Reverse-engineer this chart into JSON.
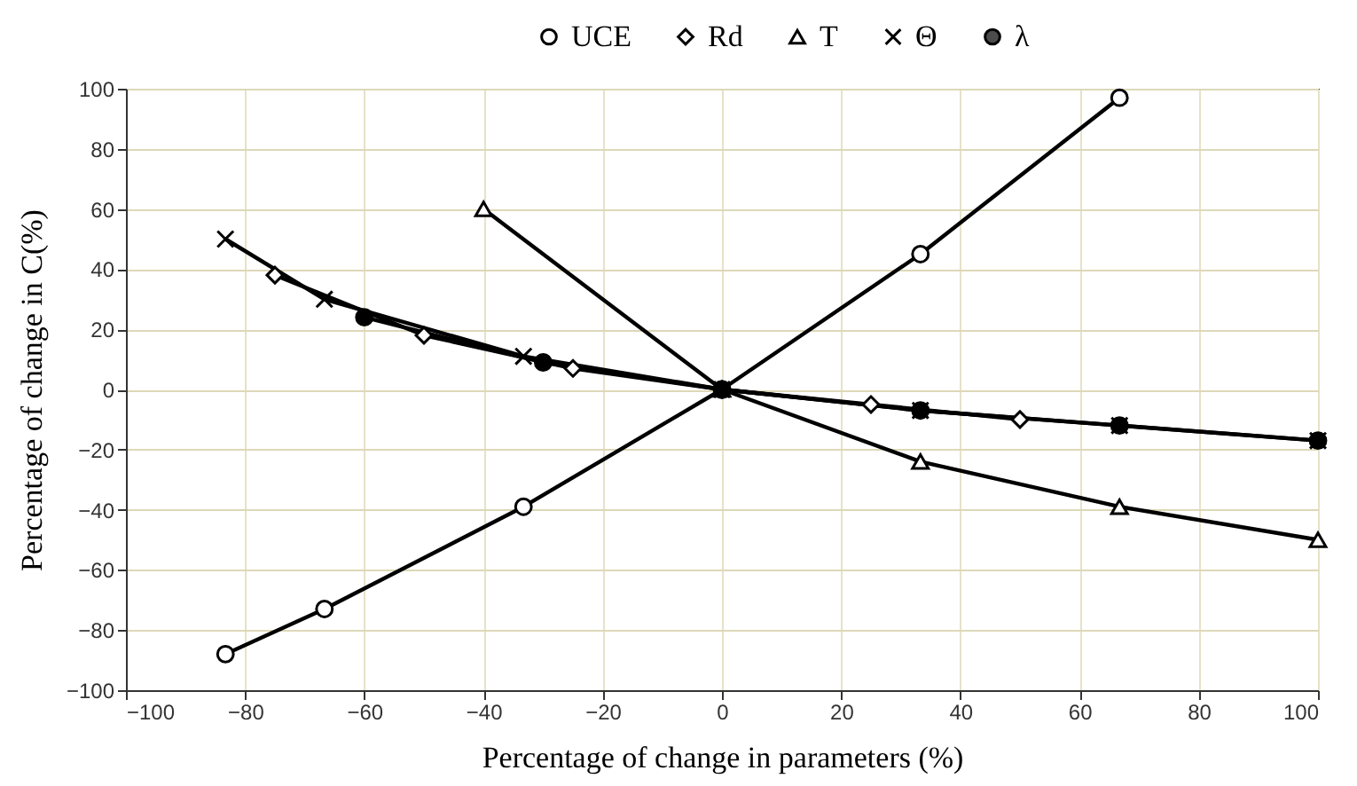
{
  "chart_data": {
    "type": "line",
    "xlabel": "Percentage of change in parameters (%)",
    "ylabel": "Percentage of change  in C(%)",
    "xlim": [
      -100,
      100
    ],
    "xticks": [
      -100,
      -80,
      -60,
      -40,
      -20,
      0,
      20,
      40,
      60,
      80,
      100
    ],
    "ylim": [
      -100,
      100
    ],
    "yticks": [
      -100,
      -80,
      -60,
      -40,
      -20,
      0,
      20,
      40,
      60,
      80,
      100
    ],
    "grid": true,
    "legend": "top right",
    "line_style": "solid",
    "series": [
      {
        "name": "UCE",
        "color": "#000000",
        "marker": "circle",
        "x": [
          -83.3,
          -66.7,
          -33.3,
          0,
          33.3,
          66.7
        ],
        "values": [
          -88,
          -73,
          -39,
          0,
          45,
          97
        ]
      },
      {
        "name": "Rd",
        "color": "#000000",
        "marker": "diamond",
        "x": [
          -75,
          -50,
          -25,
          0,
          25,
          50
        ],
        "values": [
          38,
          18,
          7,
          0,
          -5,
          -10
        ]
      },
      {
        "name": "T",
        "color": "#000000",
        "marker": "triangle",
        "x": [
          -40,
          0,
          33.3,
          66.7,
          100
        ],
        "values": [
          60,
          0,
          -24,
          -39,
          -50
        ]
      },
      {
        "name": "Θ",
        "color": "#000000",
        "marker": "cross",
        "x": [
          -83.3,
          -66.7,
          -33.3,
          0,
          33.3,
          66.7,
          100
        ],
        "values": [
          50,
          30,
          11,
          0,
          -7,
          -12,
          -17
        ]
      },
      {
        "name": "λ",
        "color": "#000000",
        "marker": "circle",
        "x": [
          -60,
          -30,
          0,
          33.3,
          66.7,
          100
        ],
        "values": [
          24,
          9,
          0,
          -7,
          -12,
          -17
        ]
      }
    ]
  }
}
